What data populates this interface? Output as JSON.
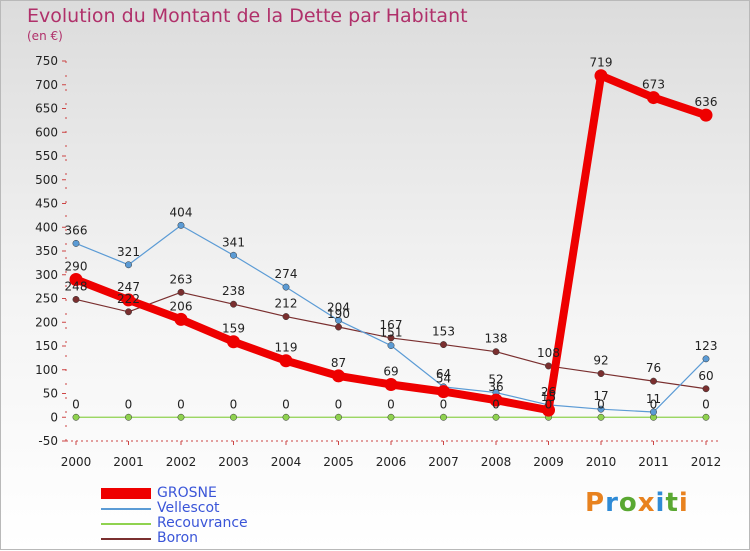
{
  "colors": {
    "title": "#b0306a",
    "legend_text": "#3a55d8"
  },
  "logo": {
    "letters": [
      "P",
      "r",
      "o",
      "x",
      "i",
      "t",
      "i"
    ],
    "colors": [
      "#e8821f",
      "#2f8bd6",
      "#5aa832",
      "#e8821f",
      "#2f8bd6",
      "#5aa832",
      "#e8821f"
    ]
  },
  "chart_data": {
    "type": "line",
    "title": "Evolution du Montant de la Dette par Habitant",
    "ylabel": "(en €)",
    "xlabel": "",
    "categories": [
      "2000",
      "2001",
      "2002",
      "2003",
      "2004",
      "2005",
      "2006",
      "2007",
      "2008",
      "2009",
      "2010",
      "2011",
      "2012"
    ],
    "ylim": [
      -50,
      750
    ],
    "yticks": [
      -50,
      0,
      50,
      100,
      150,
      200,
      250,
      300,
      350,
      400,
      450,
      500,
      550,
      600,
      650,
      700,
      750
    ],
    "grid": false,
    "legend_position": "bottom-left",
    "series": [
      {
        "name": "GROSNE",
        "color": "#ee0000",
        "style": "thick",
        "values": [
          290,
          247,
          206,
          159,
          119,
          87,
          69,
          54,
          36,
          15,
          719,
          673,
          636
        ],
        "labels": [
          "290",
          "247",
          "206",
          "159",
          "119",
          "87",
          "69",
          "54",
          "36",
          "15",
          "719",
          "673",
          "636"
        ]
      },
      {
        "name": "Vellescot",
        "color": "#5b9bd5",
        "style": "thin",
        "values": [
          366,
          321,
          404,
          341,
          274,
          204,
          151,
          64,
          52,
          26,
          17,
          11,
          123
        ],
        "labels": [
          "366",
          "321",
          "404",
          "341",
          "274",
          "204",
          "151",
          "64",
          "52",
          "26",
          "17",
          "11",
          "123"
        ]
      },
      {
        "name": "Recouvrance",
        "color": "#8fd24f",
        "style": "thin",
        "values": [
          0,
          0,
          0,
          0,
          0,
          0,
          0,
          0,
          0,
          0,
          0,
          0,
          0
        ],
        "labels": [
          "0",
          "0",
          "0",
          "0",
          "0",
          "0",
          "0",
          "0",
          "0",
          "0",
          "0",
          "0",
          "0"
        ]
      },
      {
        "name": "Boron",
        "color": "#7a2f2f",
        "style": "thin",
        "values": [
          248,
          222,
          263,
          238,
          212,
          190,
          167,
          153,
          138,
          108,
          92,
          76,
          60
        ],
        "labels": [
          "248",
          "222",
          "263",
          "238",
          "212",
          "190",
          "167",
          "153",
          "138",
          "108",
          "92",
          "76",
          "60"
        ]
      }
    ]
  }
}
